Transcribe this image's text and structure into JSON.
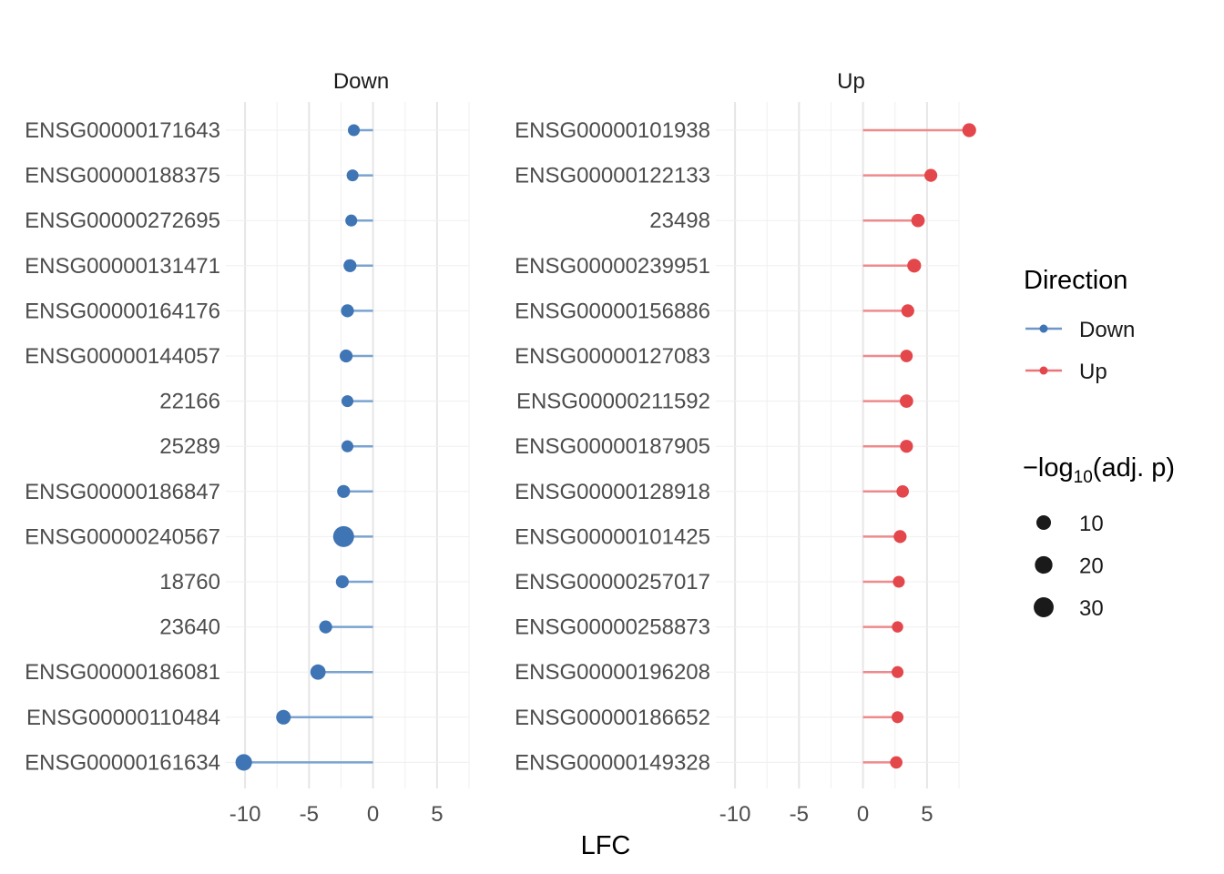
{
  "chart_data": {
    "type": "lollipop",
    "xlabel": "LFC",
    "xlim": [
      -11.5,
      7.5
    ],
    "x_ticks": [
      -10,
      -5,
      0,
      5
    ],
    "x_tick_labels": [
      "-10",
      "-5",
      "0",
      "5"
    ],
    "grid": true,
    "legend_position": "right",
    "colors": {
      "Down": "#3f74b5",
      "Up": "#e3474b"
    },
    "panels": [
      {
        "name": "Down",
        "color": "#3f74b5",
        "categories": [
          "ENSG00000171643",
          "ENSG00000188375",
          "ENSG00000272695",
          "ENSG00000131471",
          "ENSG00000164176",
          "ENSG00000144057",
          "22166",
          "25289",
          "ENSG00000186847",
          "ENSG00000240567",
          "18760",
          "23640",
          "ENSG00000186081",
          "ENSG00000110484",
          "ENSG00000161634"
        ],
        "lfc": [
          -1.5,
          -1.6,
          -1.7,
          -1.8,
          -2.0,
          -2.1,
          -2.0,
          -2.0,
          -2.3,
          -2.3,
          -2.4,
          -3.7,
          -4.3,
          -7.0,
          -10.1
        ],
        "neg_log10_adj_p": [
          4,
          4,
          4,
          6,
          6,
          6,
          4,
          4,
          6,
          35,
          6,
          6,
          12,
          10,
          16
        ]
      },
      {
        "name": "Up",
        "color": "#e3474b",
        "categories": [
          "ENSG00000101938",
          "ENSG00000122133",
          "23498",
          "ENSG00000239951",
          "ENSG00000156886",
          "ENSG00000127083",
          "ENSG00000211592",
          "ENSG00000187905",
          "ENSG00000128918",
          "ENSG00000101425",
          "ENSG00000257017",
          "ENSG00000258873",
          "ENSG00000196208",
          "ENSG00000186652",
          "ENSG00000149328"
        ],
        "lfc": [
          8.3,
          5.3,
          4.3,
          4.0,
          3.5,
          3.4,
          3.4,
          3.4,
          3.1,
          2.9,
          2.8,
          2.7,
          2.7,
          2.7,
          2.6
        ],
        "neg_log10_adj_p": [
          8,
          6,
          7,
          8,
          6,
          5,
          7,
          6,
          5,
          6,
          4,
          3,
          4,
          4,
          5
        ]
      }
    ],
    "legend": {
      "color_title": "Direction",
      "color_entries": [
        "Down",
        "Up"
      ],
      "size_title_prefix": "−log",
      "size_title_sub": "10",
      "size_title_suffix": "(adj. p)",
      "size_entries": [
        10,
        20,
        30
      ]
    }
  }
}
